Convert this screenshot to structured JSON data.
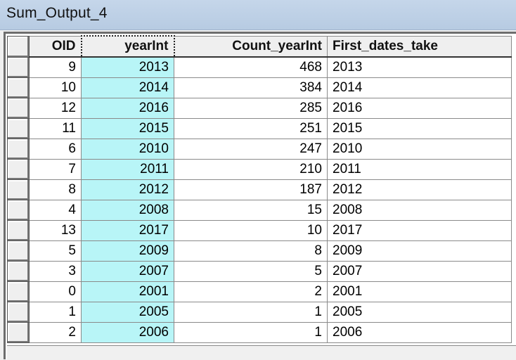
{
  "window": {
    "title": "Sum_Output_4"
  },
  "table": {
    "columns": [
      "OID",
      "yearInt",
      "Count_yearInt",
      "First_dates_take"
    ],
    "rows": [
      [
        "9",
        "2013",
        "468",
        "2013"
      ],
      [
        "10",
        "2014",
        "384",
        "2014"
      ],
      [
        "12",
        "2016",
        "285",
        "2016"
      ],
      [
        "11",
        "2015",
        "251",
        "2015"
      ],
      [
        "6",
        "2010",
        "247",
        "2010"
      ],
      [
        "7",
        "2011",
        "210",
        "2011"
      ],
      [
        "8",
        "2012",
        "187",
        "2012"
      ],
      [
        "4",
        "2008",
        "15",
        "2008"
      ],
      [
        "13",
        "2017",
        "10",
        "2017"
      ],
      [
        "5",
        "2009",
        "8",
        "2009"
      ],
      [
        "3",
        "2007",
        "5",
        "2007"
      ],
      [
        "0",
        "2001",
        "2",
        "2001"
      ],
      [
        "1",
        "2005",
        "1",
        "2005"
      ],
      [
        "2",
        "2006",
        "1",
        "2006"
      ]
    ]
  },
  "colors": {
    "selected_column": "#b8f5f7",
    "titlebar": "#bfd2e8"
  }
}
